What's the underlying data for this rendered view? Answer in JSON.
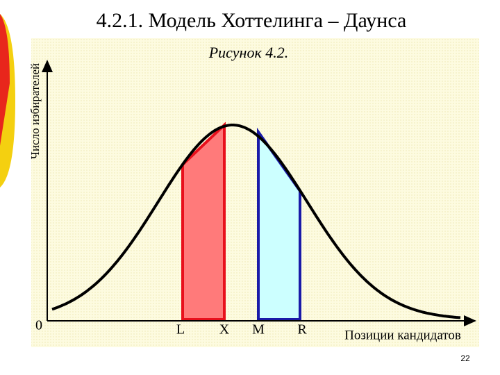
{
  "header": {
    "title": "4.2.1. Модель Хоттелинга – Даунса"
  },
  "figure": {
    "caption": "Рисунок 4.2.",
    "y_axis_label": "Число избирателей",
    "origin_label": "0",
    "x_axis_label": "Позиции кандидатов",
    "points": [
      "L",
      "X",
      "M",
      "R"
    ]
  },
  "footer": {
    "page_number": "22"
  }
}
